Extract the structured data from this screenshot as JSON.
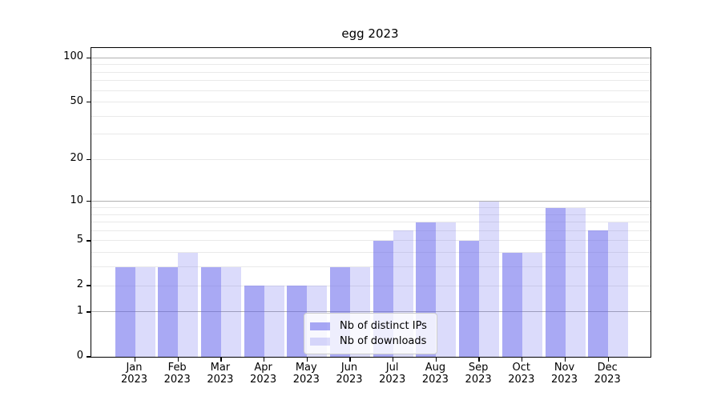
{
  "chart_data": {
    "type": "bar",
    "title": "egg 2023",
    "xlabel": "",
    "ylabel": "",
    "categories": [
      "Jan 2023",
      "Feb 2023",
      "Mar 2023",
      "Apr 2023",
      "May 2023",
      "Jun 2023",
      "Jul 2023",
      "Aug 2023",
      "Sep 2023",
      "Oct 2023",
      "Nov 2023",
      "Dec 2023"
    ],
    "series": [
      {
        "name": "Nb of distinct IPs",
        "color": "rgba(92,92,235,0.53)",
        "values": [
          3,
          3,
          3,
          2,
          2,
          3,
          5,
          7,
          5,
          4,
          9,
          6
        ]
      },
      {
        "name": "Nb of downloads",
        "color": "rgba(92,92,235,0.22)",
        "values": [
          3,
          4,
          3,
          2,
          2,
          3,
          6,
          7,
          10,
          4,
          9,
          7
        ]
      }
    ],
    "y_scale": "log10(1+v)",
    "y_ticks": [
      100,
      50,
      20,
      10,
      5,
      2,
      1,
      0
    ],
    "major_gridlines": [
      1,
      10,
      100
    ],
    "minor_gridlines": [
      2,
      3,
      4,
      5,
      6,
      7,
      8,
      9,
      20,
      30,
      40,
      50,
      60,
      70,
      80,
      90
    ],
    "ylim": [
      0,
      116
    ],
    "grid": true,
    "legend_position": "lower center"
  }
}
